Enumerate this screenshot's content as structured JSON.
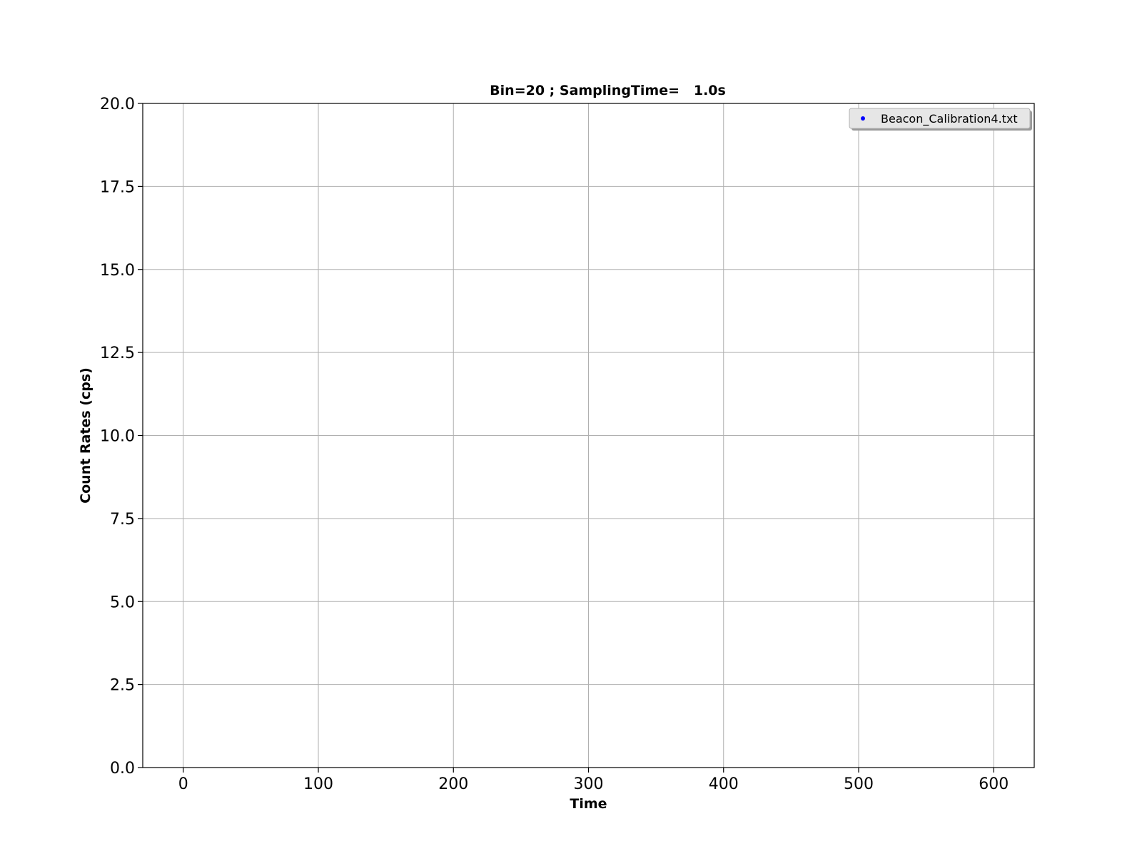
{
  "chart_data": {
    "type": "scatter",
    "title": "Bin=20 ; SamplingTime=   1.0s",
    "xlabel": "Time",
    "ylabel": "Count Rates (cps)",
    "xlim": [
      -30,
      630
    ],
    "ylim": [
      0,
      20
    ],
    "x_ticks": [
      0,
      100,
      200,
      300,
      400,
      500,
      600
    ],
    "x_tick_labels": [
      "0",
      "100",
      "200",
      "300",
      "400",
      "500",
      "600"
    ],
    "y_ticks": [
      0,
      2.5,
      5,
      7.5,
      10,
      12.5,
      15,
      17.5,
      20
    ],
    "y_tick_labels": [
      "0.0",
      "2.5",
      "5.0",
      "7.5",
      "10.0",
      "12.5",
      "15.0",
      "17.5",
      "20.0"
    ],
    "grid": true,
    "legend": {
      "placement": "upper-right",
      "entries": [
        "Beacon_Calibration4.txt"
      ]
    },
    "series": [
      {
        "name": "Beacon_Calibration4.txt",
        "color": "#0000ff",
        "marker": "point",
        "x": [],
        "y": []
      }
    ]
  }
}
